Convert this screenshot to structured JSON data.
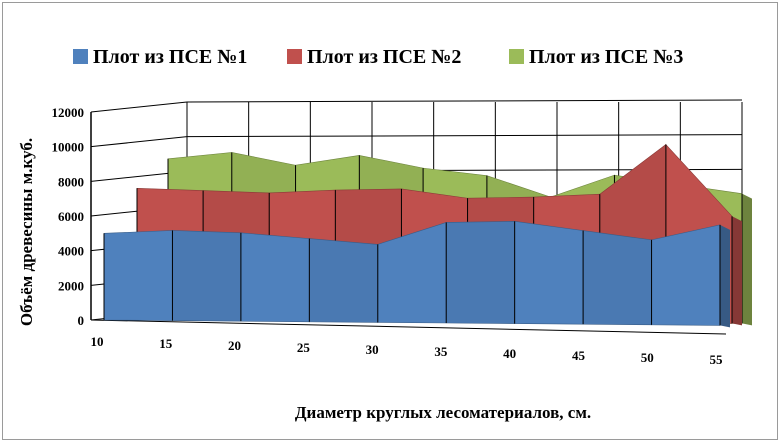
{
  "chart_data": {
    "type": "area",
    "title": "",
    "xlabel": "Диаметр круглых лесоматериалов, см.",
    "ylabel": "Объём древесины м.куб.",
    "x": [
      10,
      15,
      20,
      25,
      30,
      35,
      40,
      45,
      50,
      55
    ],
    "ylim": [
      0,
      12000
    ],
    "yticks": [
      0,
      2000,
      4000,
      6000,
      8000,
      10000,
      12000
    ],
    "grid": true,
    "legend": "top",
    "series": [
      {
        "name": "Плот из ПСЕ №1",
        "color": "#4f81bd",
        "values": [
          5000,
          5200,
          5100,
          4800,
          4500,
          5800,
          5900,
          5400,
          4900,
          5800
        ]
      },
      {
        "name": "Плот из ПСЕ №2",
        "color": "#c0504d",
        "values": [
          7600,
          7500,
          7400,
          7600,
          7700,
          7200,
          7300,
          7500,
          10400,
          6300
        ]
      },
      {
        "name": "Плот из ПСЕ №3",
        "color": "#9bbb59",
        "values": [
          9300,
          9700,
          9000,
          9600,
          8900,
          8500,
          7300,
          8600,
          null,
          7600
        ]
      }
    ]
  }
}
